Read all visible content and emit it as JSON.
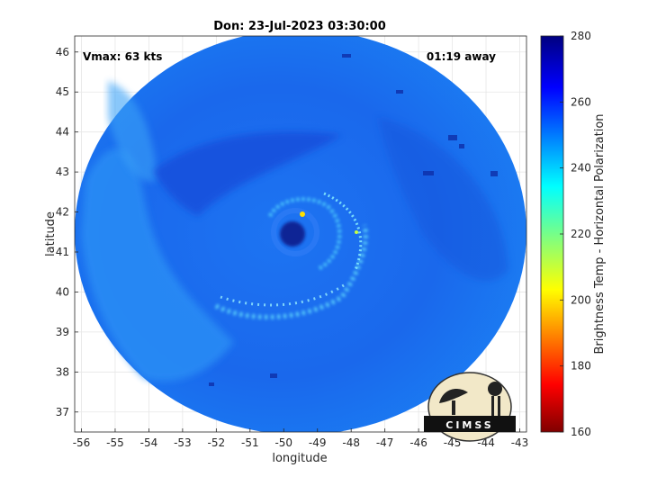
{
  "chart_data": {
    "type": "heatmap",
    "title": "Don: 23-Jul-2023 03:30:00",
    "xlabel": "longitude",
    "ylabel": "latitude",
    "xlim": [
      -56.2,
      -42.8
    ],
    "ylim": [
      36.5,
      46.4
    ],
    "xticks": [
      -56,
      -55,
      -54,
      -53,
      -52,
      -51,
      -50,
      -49,
      -48,
      -47,
      -46,
      -45,
      -44,
      -43
    ],
    "yticks": [
      37,
      38,
      39,
      40,
      41,
      42,
      43,
      44,
      45,
      46
    ],
    "grid": true,
    "storm_center": {
      "lon": -50.0,
      "lat": 41.5
    },
    "colorbar": {
      "label": "Brightness Temp - Horizontal Polarization",
      "range": [
        160,
        280
      ],
      "ticks": [
        160,
        180,
        200,
        220,
        240,
        260,
        280
      ],
      "colormap": "jet"
    }
  },
  "annotations": {
    "vmax": "Vmax: 63 kts",
    "time_away": "01:19 away"
  },
  "logo": {
    "text": "CIMSS"
  },
  "colors": {
    "background_field": "#1a6ef0",
    "eye": "#0a1a8c",
    "bands": "#7ffaff",
    "hot": "#ffe000"
  }
}
